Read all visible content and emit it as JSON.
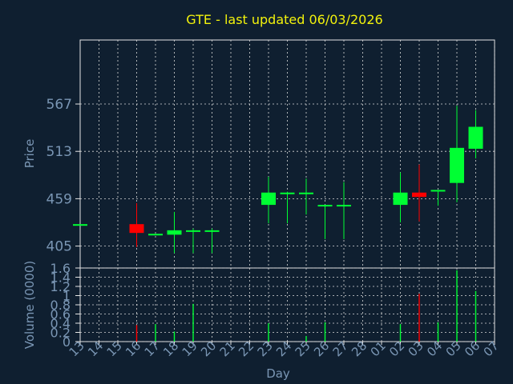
{
  "colors": {
    "background": "#0f1f30",
    "title": "#f2f20c",
    "axis_text": "#7a96b4",
    "grid": "#d9d9d9",
    "frame": "#e6e6e6",
    "up": "#00ff33",
    "down": "#ff0000"
  },
  "chart_data": [
    {
      "type": "candlestick",
      "title": "GTE - last updated 06/03/2026",
      "xlabel": "",
      "ylabel": "Price",
      "yticks": [
        405,
        459,
        513,
        567
      ],
      "ylim": [
        380,
        640
      ],
      "grid": true,
      "categories": [
        "13",
        "14",
        "15",
        "16",
        "17",
        "18",
        "19",
        "20",
        "21",
        "22",
        "23",
        "24",
        "25",
        "26",
        "27",
        "28",
        "01",
        "02",
        "03",
        "04",
        "05",
        "06",
        "07"
      ],
      "candles": [
        {
          "x": "13",
          "open": 430,
          "high": 430,
          "low": 430,
          "close": 430
        },
        {
          "x": "16",
          "open": 430,
          "high": 454,
          "low": 404,
          "close": 420
        },
        {
          "x": "17",
          "open": 419,
          "high": 419,
          "low": 419,
          "close": 419
        },
        {
          "x": "18",
          "open": 418,
          "high": 444,
          "low": 397,
          "close": 423
        },
        {
          "x": "19",
          "open": 423,
          "high": 425,
          "low": 397,
          "close": 423
        },
        {
          "x": "20",
          "open": 423,
          "high": 425,
          "low": 397,
          "close": 423
        },
        {
          "x": "23",
          "open": 452,
          "high": 484,
          "low": 431,
          "close": 466
        },
        {
          "x": "24",
          "open": 466,
          "high": 467,
          "low": 431,
          "close": 466
        },
        {
          "x": "25",
          "open": 466,
          "high": 482,
          "low": 441,
          "close": 466
        },
        {
          "x": "26",
          "open": 452,
          "high": 452,
          "low": 413,
          "close": 452
        },
        {
          "x": "27",
          "open": 452,
          "high": 478,
          "low": 413,
          "close": 452
        },
        {
          "x": "02",
          "open": 452,
          "high": 489,
          "low": 432,
          "close": 466
        },
        {
          "x": "03",
          "open": 466,
          "high": 498,
          "low": 433,
          "close": 461
        },
        {
          "x": "04",
          "open": 469,
          "high": 469,
          "low": 451,
          "close": 469
        },
        {
          "x": "05",
          "open": 477,
          "high": 565,
          "low": 455,
          "close": 517
        },
        {
          "x": "06",
          "open": 516,
          "high": 560,
          "low": 505,
          "close": 541
        }
      ]
    },
    {
      "type": "bar",
      "xlabel": "Day",
      "ylabel": "Volume (0000)",
      "yticks": [
        0,
        0.2,
        0.4,
        0.6,
        0.8,
        1,
        1.2,
        1.4,
        1.6
      ],
      "ylim": [
        0,
        1.6
      ],
      "grid": true,
      "categories": [
        "13",
        "14",
        "15",
        "16",
        "17",
        "18",
        "19",
        "20",
        "21",
        "22",
        "23",
        "24",
        "25",
        "26",
        "27",
        "28",
        "01",
        "02",
        "03",
        "04",
        "05",
        "06",
        "07"
      ],
      "bars": [
        {
          "x": "16",
          "value": 0.36,
          "dir": "down"
        },
        {
          "x": "17",
          "value": 0.38,
          "dir": "up"
        },
        {
          "x": "18",
          "value": 0.22,
          "dir": "up"
        },
        {
          "x": "19",
          "value": 0.82,
          "dir": "up"
        },
        {
          "x": "23",
          "value": 0.4,
          "dir": "up"
        },
        {
          "x": "25",
          "value": 0.12,
          "dir": "up"
        },
        {
          "x": "26",
          "value": 0.42,
          "dir": "up"
        },
        {
          "x": "02",
          "value": 0.38,
          "dir": "up"
        },
        {
          "x": "03",
          "value": 1.04,
          "dir": "down"
        },
        {
          "x": "04",
          "value": 0.42,
          "dir": "up"
        },
        {
          "x": "05",
          "value": 1.55,
          "dir": "up"
        },
        {
          "x": "06",
          "value": 1.1,
          "dir": "up"
        }
      ]
    }
  ]
}
